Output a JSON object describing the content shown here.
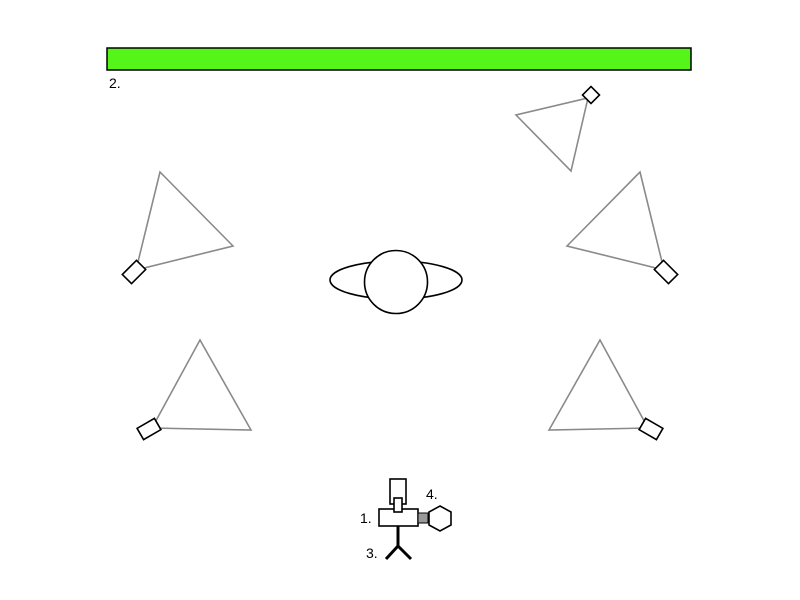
{
  "colors": {
    "backdrop": "#55f51a",
    "light_beam": "#8a8a8a",
    "outline": "#000000",
    "connector": "#999999"
  },
  "labels": {
    "camera": "1.",
    "backdrop": "2.",
    "tripod": "3.",
    "accessory": "4."
  },
  "icons": {
    "subject": "subject-ellipse-icon",
    "light": "light-cone-icon",
    "camera": "camera-icon",
    "tripod": "tripod-icon",
    "accessory": "hexagon-accessory-icon"
  }
}
